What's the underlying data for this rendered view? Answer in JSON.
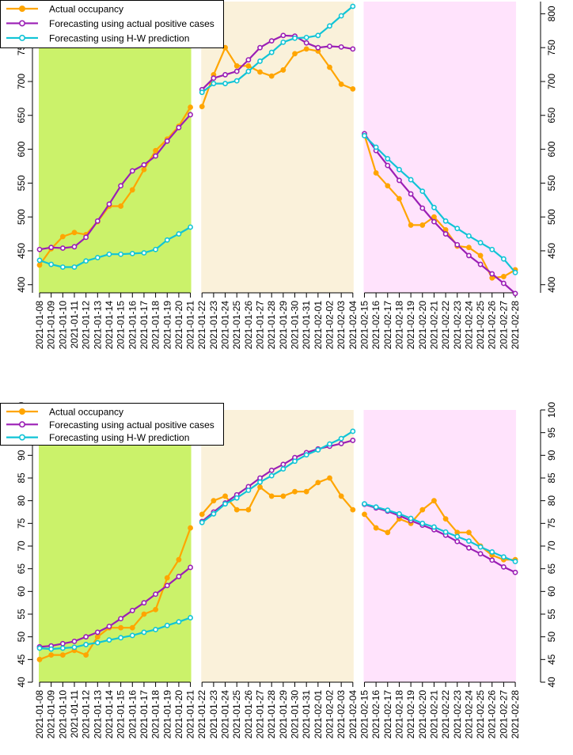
{
  "colors": {
    "actual": "#FFA500",
    "positive": "#9B1FB5",
    "hw": "#10C4D6",
    "region1": "#CBF26A",
    "region2": "#FAF1DA",
    "region3": "#FFE3FC"
  },
  "chart_data": [
    {
      "type": "line",
      "title": "",
      "xlabel": "",
      "ylabel": "",
      "ylim": [
        388,
        818
      ],
      "yticks": [
        "400",
        "450",
        "500",
        "550",
        "600",
        "650",
        "700",
        "750",
        "800"
      ],
      "categories": [
        "2021-01-08",
        "2021-01-09",
        "2021-01-10",
        "2021-01-11",
        "2021-01-12",
        "2021-01-13",
        "2021-01-14",
        "2021-01-15",
        "2021-01-16",
        "2021-01-17",
        "2021-01-18",
        "2021-01-19",
        "2021-01-20",
        "2021-01-21",
        "2021-01-22",
        "2021-01-23",
        "2021-01-24",
        "2021-01-25",
        "2021-01-26",
        "2021-01-27",
        "2021-01-28",
        "2021-01-29",
        "2021-01-30",
        "2021-01-31",
        "2021-02-01",
        "2021-02-02",
        "2021-02-03",
        "2021-02-04",
        "2021-02-15",
        "2021-02-16",
        "2021-02-17",
        "2021-02-18",
        "2021-02-19",
        "2021-02-20",
        "2021-02-21",
        "2021-02-22",
        "2021-02-23",
        "2021-02-24",
        "2021-02-25",
        "2021-02-26",
        "2021-02-27",
        "2021-02-28"
      ],
      "segments": [
        [
          0,
          13
        ],
        [
          14,
          27
        ],
        [
          28,
          41
        ]
      ],
      "legend": [
        "Actual occupancy",
        "Forecasting using actual positive cases",
        "Forecasting using H-W prediction"
      ],
      "series": [
        {
          "name": "Actual occupancy",
          "key": "actual",
          "values": [
            429,
            453,
            471,
            477,
            474,
            493,
            516,
            516,
            540,
            570,
            598,
            615,
            634,
            662,
            663,
            710,
            750,
            723,
            723,
            714,
            708,
            717,
            741,
            748,
            745,
            721,
            696,
            689,
            621,
            565,
            546,
            527,
            488,
            488,
            500,
            481,
            457,
            455,
            443,
            410,
            412,
            422
          ]
        },
        {
          "name": "Forecasting using actual positive cases",
          "key": "positive",
          "values": [
            452,
            455,
            454,
            456,
            470,
            494,
            519,
            546,
            568,
            577,
            590,
            612,
            632,
            651,
            688,
            705,
            710,
            715,
            732,
            750,
            760,
            768,
            767,
            757,
            750,
            752,
            751,
            748,
            623,
            598,
            576,
            554,
            534,
            513,
            493,
            475,
            459,
            443,
            430,
            416,
            402,
            387
          ]
        },
        {
          "name": "Forecasting using H-W prediction",
          "key": "hw",
          "values": [
            436,
            430,
            426,
            426,
            435,
            440,
            445,
            445,
            446,
            447,
            452,
            466,
            475,
            485,
            684,
            697,
            697,
            701,
            715,
            730,
            743,
            758,
            764,
            765,
            768,
            782,
            797,
            811,
            620,
            603,
            586,
            570,
            555,
            538,
            514,
            494,
            483,
            472,
            462,
            452,
            438,
            418
          ]
        }
      ]
    },
    {
      "type": "line",
      "title": "",
      "xlabel": "",
      "ylabel": "",
      "ylim": [
        40,
        100
      ],
      "yticks": [
        "40",
        "45",
        "50",
        "55",
        "60",
        "65",
        "70",
        "75",
        "80",
        "85",
        "90",
        "95",
        "100"
      ],
      "categories": [
        "2021-01-08",
        "2021-01-09",
        "2021-01-10",
        "2021-01-11",
        "2021-01-12",
        "2021-01-13",
        "2021-01-14",
        "2021-01-15",
        "2021-01-16",
        "2021-01-17",
        "2021-01-18",
        "2021-01-19",
        "2021-01-20",
        "2021-01-21",
        "2021-01-22",
        "2021-01-23",
        "2021-01-24",
        "2021-01-25",
        "2021-01-26",
        "2021-01-27",
        "2021-01-28",
        "2021-01-29",
        "2021-01-30",
        "2021-01-31",
        "2021-02-01",
        "2021-02-02",
        "2021-02-03",
        "2021-02-04",
        "2021-02-15",
        "2021-02-16",
        "2021-02-17",
        "2021-02-18",
        "2021-02-19",
        "2021-02-20",
        "2021-02-21",
        "2021-02-22",
        "2021-02-23",
        "2021-02-24",
        "2021-02-25",
        "2021-02-26",
        "2021-02-27",
        "2021-02-28"
      ],
      "segments": [
        [
          0,
          13
        ],
        [
          14,
          27
        ],
        [
          28,
          41
        ]
      ],
      "legend": [
        "Actual occupancy",
        "Forecasting using actual positive cases",
        "Forecasting using H-W prediction"
      ],
      "series": [
        {
          "name": "Actual occupancy",
          "key": "actual",
          "values": [
            45,
            46,
            46,
            47,
            46,
            50,
            52,
            52,
            52,
            55,
            56,
            63,
            67,
            74,
            77,
            80,
            81,
            78,
            78,
            83,
            81,
            81,
            82,
            82,
            84,
            85,
            81,
            78,
            77,
            74,
            73,
            76,
            75,
            78,
            80,
            76,
            73,
            73,
            70,
            68,
            67,
            67
          ]
        },
        {
          "name": "Forecasting using actual positive cases",
          "key": "positive",
          "values": [
            47.8,
            48,
            48.5,
            49,
            50,
            51,
            52.3,
            54,
            55.8,
            57.5,
            59.4,
            61.3,
            63.3,
            65.3,
            75.4,
            77.5,
            79.5,
            81.3,
            83.1,
            85,
            86.7,
            88,
            89.5,
            90.6,
            91.4,
            92,
            92.6,
            93.3,
            79.2,
            78.4,
            77.7,
            76.7,
            75.6,
            74.6,
            73.6,
            72.4,
            71,
            69.6,
            68.3,
            66.9,
            65.4,
            64.2
          ]
        },
        {
          "name": "Forecasting using H-W prediction",
          "key": "hw",
          "values": [
            47.5,
            47.3,
            47.5,
            47.7,
            48.3,
            48.7,
            49.3,
            49.8,
            50.3,
            51,
            51.6,
            52.5,
            53.3,
            54.2,
            75.2,
            77.1,
            79.3,
            80.6,
            82.3,
            84.1,
            85.5,
            87,
            88.7,
            90.1,
            91.2,
            92.5,
            93.7,
            95.3,
            79.3,
            78.6,
            77.9,
            77.1,
            76.1,
            75,
            74.2,
            73.1,
            72.1,
            71.1,
            69.8,
            68.7,
            67.6,
            66.6
          ]
        }
      ]
    }
  ]
}
